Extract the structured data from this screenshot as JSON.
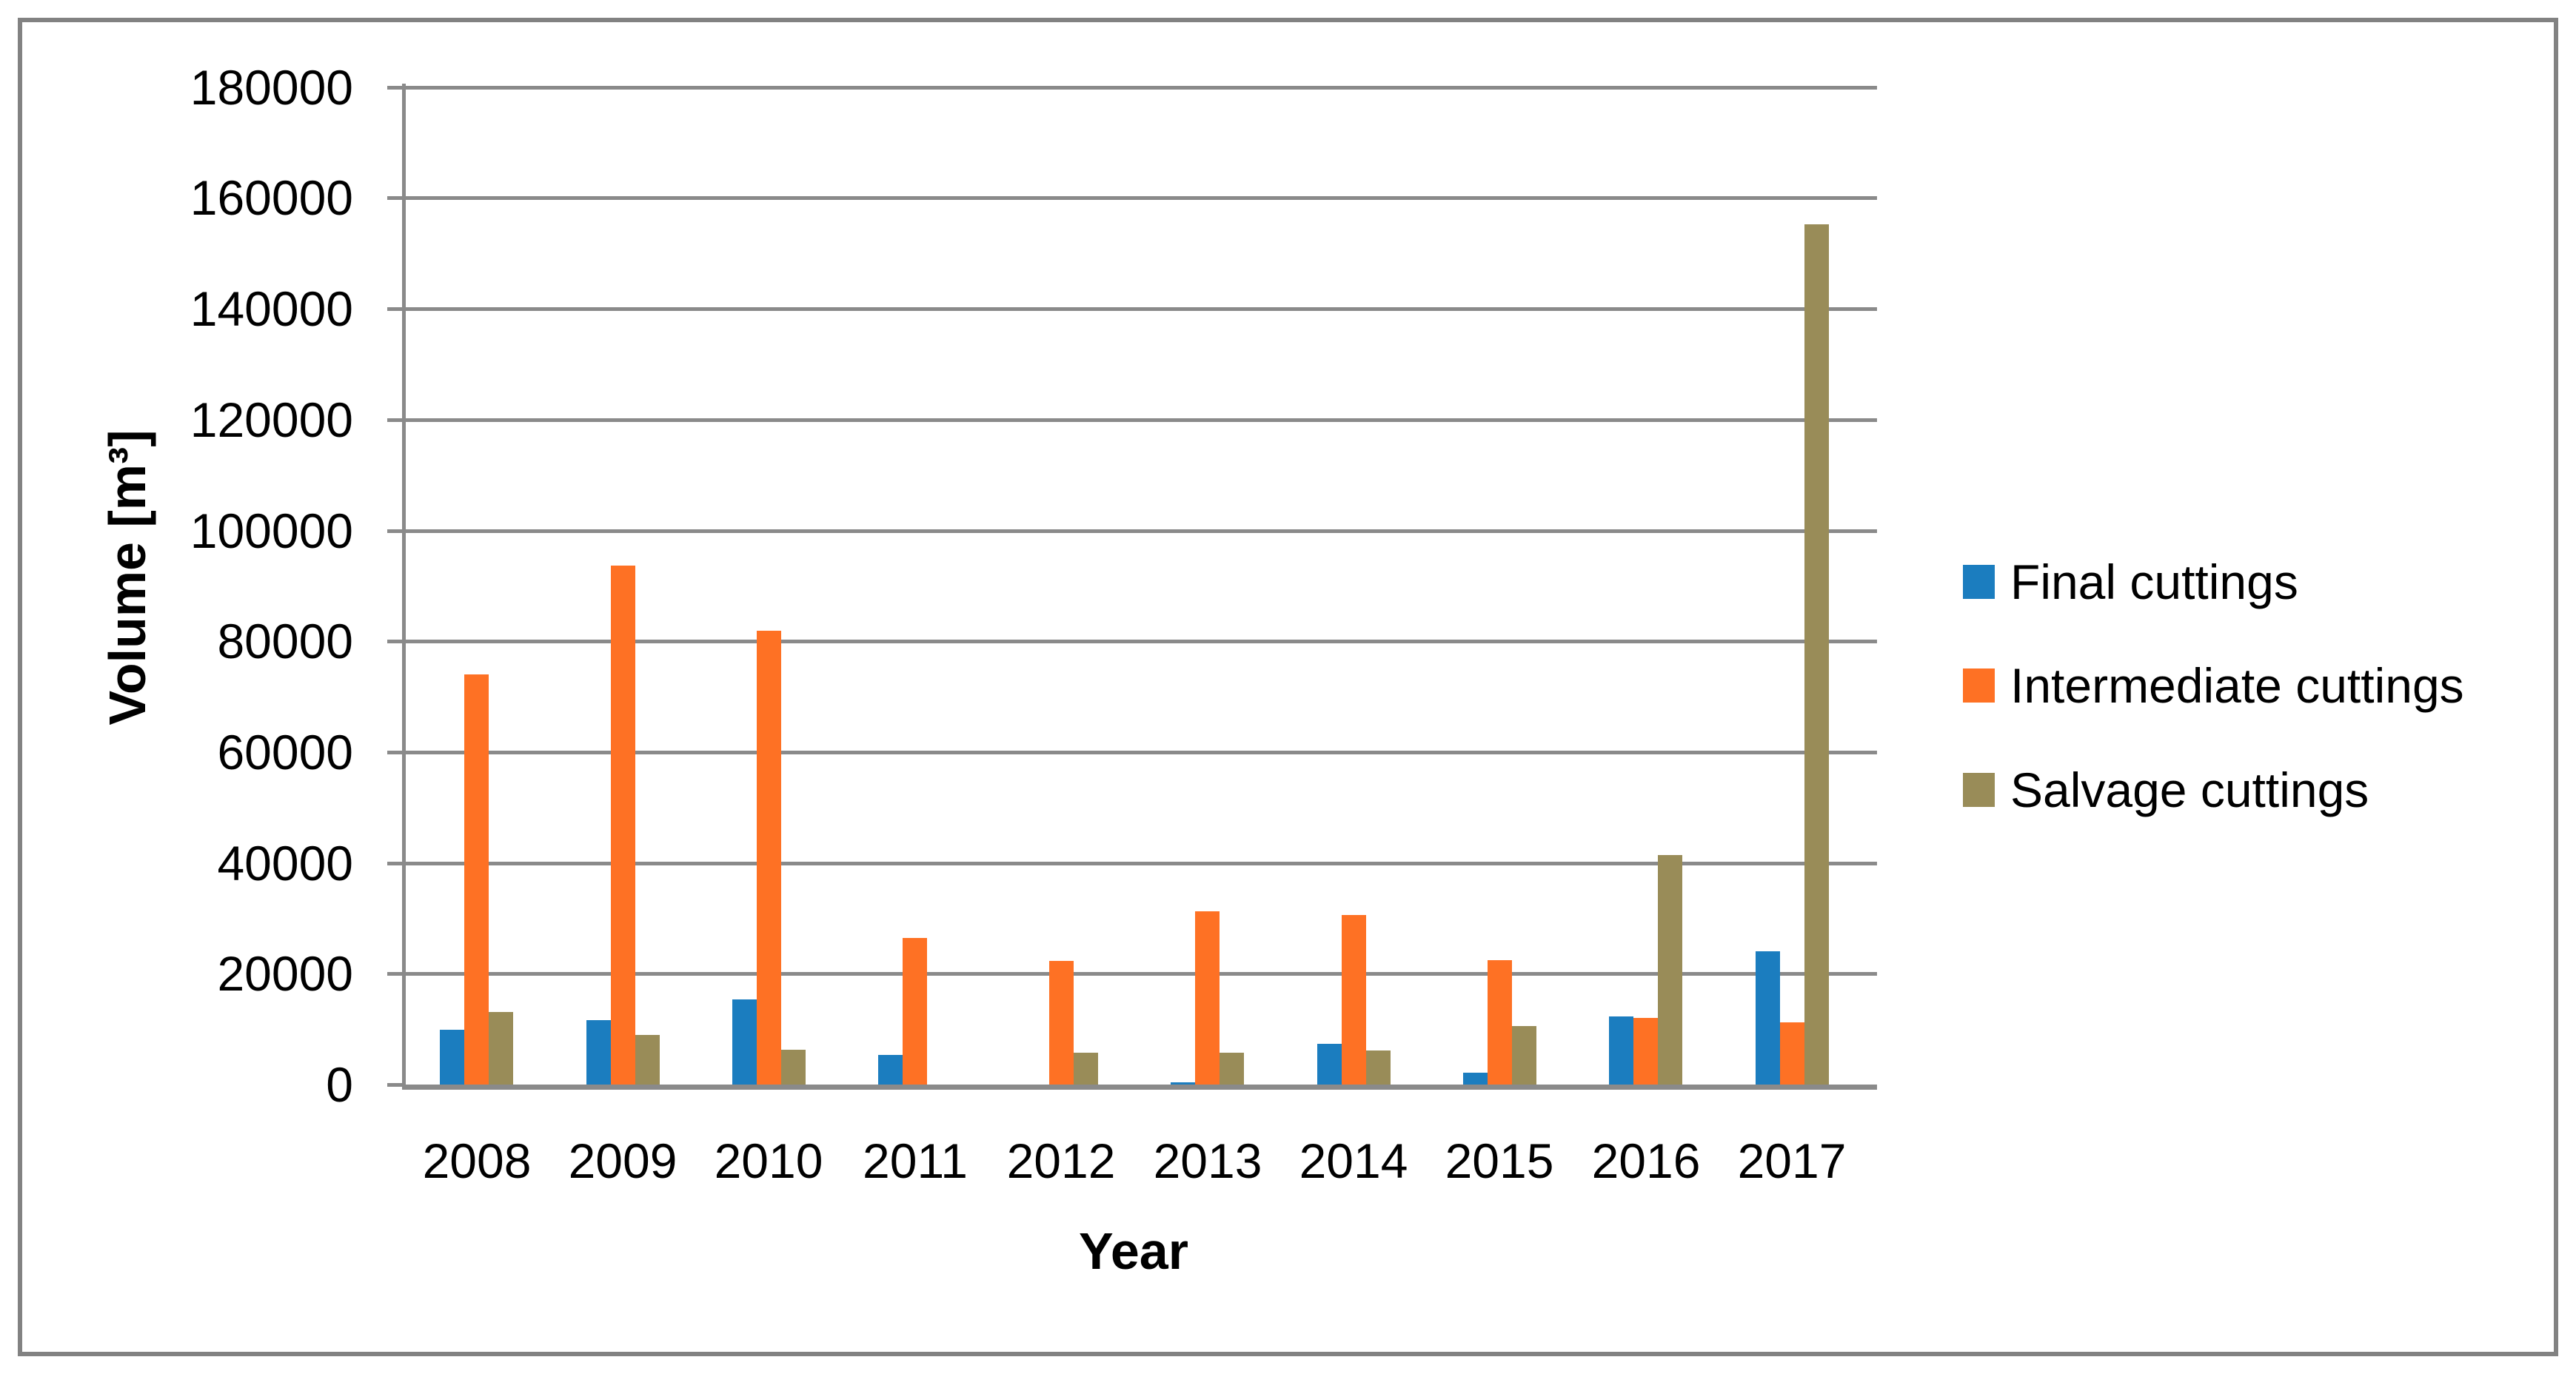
{
  "chart_data": {
    "type": "bar",
    "title": "",
    "xlabel": "Year",
    "ylabel": "Volume [m³]",
    "categories": [
      "2008",
      "2009",
      "2010",
      "2011",
      "2012",
      "2013",
      "2014",
      "2015",
      "2016",
      "2017"
    ],
    "series": [
      {
        "name": "Final cuttings",
        "values": [
          9900,
          11600,
          15400,
          5300,
          0,
          400,
          7400,
          2200,
          12300,
          24100
        ]
      },
      {
        "name": "Intermediate cuttings",
        "values": [
          74000,
          93600,
          81900,
          26400,
          22300,
          31200,
          30600,
          22500,
          12000,
          11200
        ]
      },
      {
        "name": "Salvage cuttings",
        "values": [
          13100,
          9000,
          6300,
          0,
          5700,
          5700,
          6200,
          10500,
          41400,
          155200
        ]
      }
    ],
    "colors": [
      "#1b7dbf",
      "#fe7124",
      "#998c58"
    ],
    "ylim": [
      0,
      180000
    ],
    "y_ticks": [
      "0",
      "20000",
      "40000",
      "60000",
      "80000",
      "100000",
      "120000",
      "140000",
      "160000",
      "180000"
    ],
    "grid": "horizontal",
    "legend_position": "right",
    "gridline_color": "#8a8a8a",
    "border_color": "#828282"
  }
}
